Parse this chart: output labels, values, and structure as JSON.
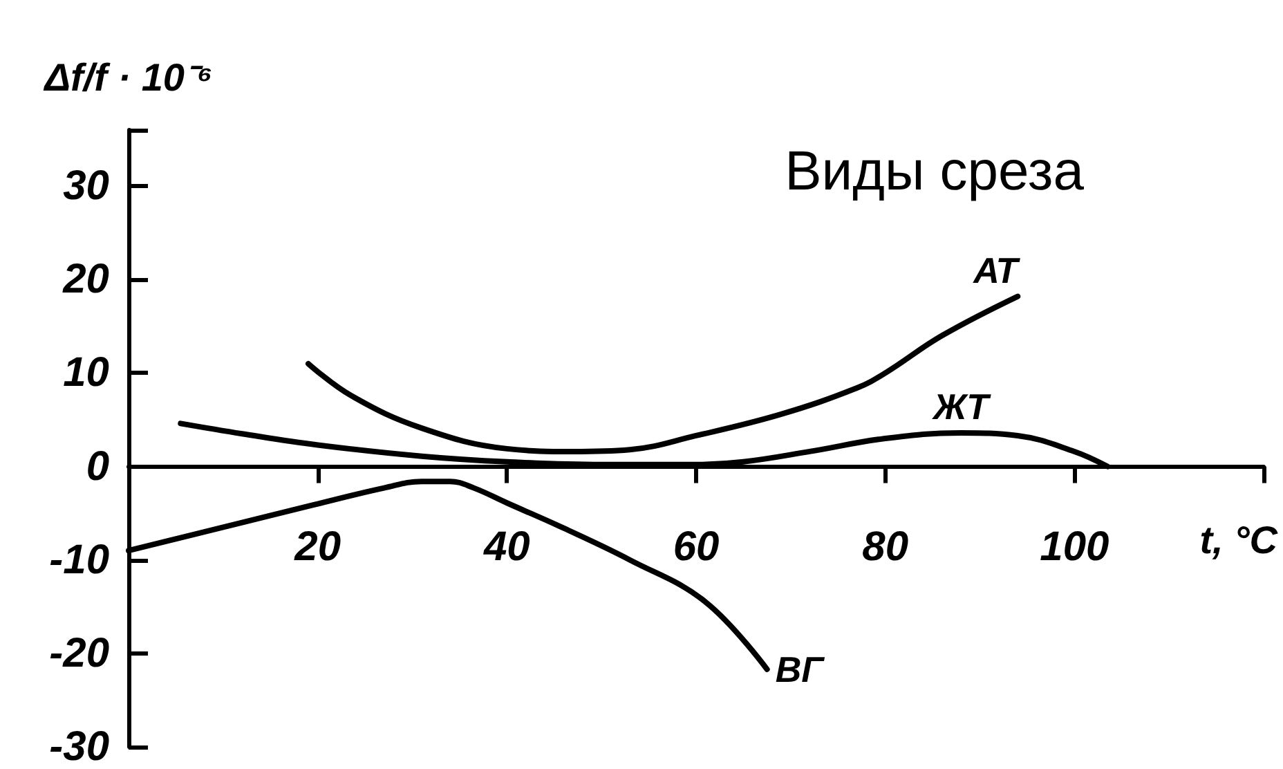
{
  "chart_data": {
    "type": "line",
    "xlabel": "t, °C",
    "ylabel": "Δf/f · 10⁻⁶",
    "annotations": [
      "Виды среза"
    ],
    "xlim": [
      0,
      120
    ],
    "xticks": [
      20,
      40,
      60,
      80,
      100,
      {
        "value": 120,
        "label": null
      }
    ],
    "ylim": [
      -30,
      36
    ],
    "yticks": [
      -30,
      -20,
      -10,
      0,
      10,
      20,
      30,
      {
        "value": 36,
        "label": null
      }
    ],
    "grid": false,
    "marker": "none",
    "line_style": "solid",
    "series": [
      {
        "name": "АТ",
        "color": "#000000",
        "x": [
          19,
          23.5,
          31,
          40,
          47,
          53,
          60,
          69,
          77,
          80,
          86,
          94
        ],
        "values": [
          11,
          7.6,
          4.1,
          1.9,
          1.6,
          1.8,
          3.3,
          5.6,
          8.4,
          10,
          14,
          18.2
        ]
      },
      {
        "name": "ЖТ",
        "color": "#000000",
        "x": [
          5.5,
          12,
          20,
          31,
          40,
          50,
          60,
          65,
          72,
          80,
          88,
          94,
          100,
          103.5
        ],
        "values": [
          4.6,
          3.5,
          2.3,
          1.1,
          0.5,
          0.2,
          0.2,
          0.5,
          1.6,
          3,
          3.6,
          3.3,
          1.6,
          0
        ]
      },
      {
        "name": "ВГ",
        "color": "#000000",
        "x": [
          0,
          10,
          19.6,
          27,
          31,
          34,
          36.5,
          40,
          46,
          53,
          61,
          67.5
        ],
        "values": [
          -9,
          -6.5,
          -4.1,
          -2.3,
          -1.6,
          -1.6,
          -2.3,
          -3.9,
          -6.6,
          -10,
          -14.5,
          -21.7
        ]
      }
    ]
  }
}
